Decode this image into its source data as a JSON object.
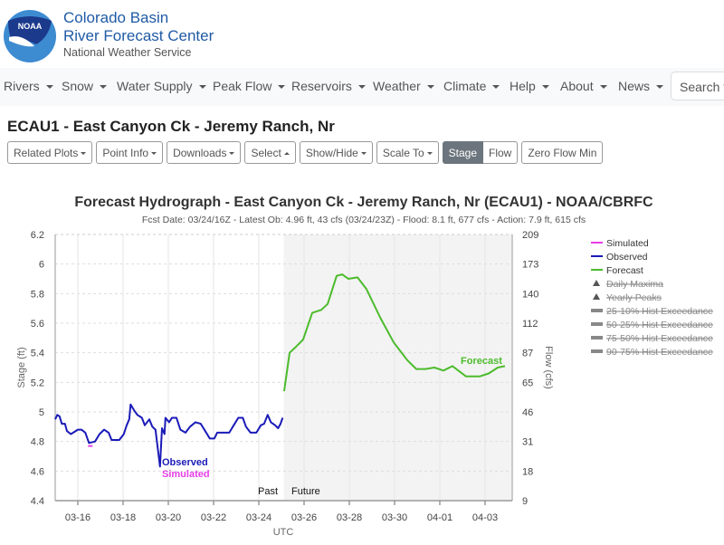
{
  "header": {
    "title_line1": "Colorado Basin",
    "title_line2": "River Forecast Center",
    "subtitle": "National Weather Service",
    "logo_text": "NOAA"
  },
  "nav": {
    "items": [
      "Rivers",
      "Snow",
      "Water Supply",
      "Peak Flow",
      "Reservoirs",
      "Weather",
      "Climate",
      "Help",
      "About",
      "News"
    ],
    "search_placeholder": "Search this site"
  },
  "page_title": "ECAU1 - East Canyon Ck - Jeremy Ranch, Nr",
  "toolbar": {
    "related": "Related Plots",
    "point": "Point Info",
    "downloads": "Downloads",
    "select": "Select",
    "showhide": "Show/Hide",
    "scale": "Scale To",
    "stage": "Stage",
    "flow": "Flow",
    "zero": "Zero Flow Min"
  },
  "chart_data": {
    "type": "line",
    "title": "Forecast Hydrograph - East Canyon Ck - Jeremy Ranch, Nr (ECAU1) - NOAA/CBRFC",
    "subtitle": "Fcst Date: 03/24/16Z - Latest Ob: 4.96 ft, 43 cfs (03/24/23Z) - Flood: 8.1 ft, 677 cfs - Action: 7.9 ft, 615 cfs",
    "ylabel": "Stage (ft)",
    "y2label": "Flow (cfs)",
    "xlabel": "UTC",
    "ylim": [
      4.4,
      6.2
    ],
    "yticks": [
      "6.2",
      "6",
      "5.8",
      "5.6",
      "5.4",
      "5.2",
      "5",
      "4.8",
      "4.6",
      "4.4"
    ],
    "y2ticks": [
      "209",
      "173",
      "140",
      "112",
      "87",
      "65",
      "46",
      "31",
      "18",
      "9"
    ],
    "x_unit": "days since 03-15 00Z",
    "xlim": [
      0,
      20.2
    ],
    "xticks": [
      {
        "day": 1,
        "label": "03-16"
      },
      {
        "day": 3,
        "label": "03-18"
      },
      {
        "day": 5,
        "label": "03-20"
      },
      {
        "day": 7,
        "label": "03-22"
      },
      {
        "day": 9,
        "label": "03-24"
      },
      {
        "day": 11,
        "label": "03-26"
      },
      {
        "day": 13,
        "label": "03-28"
      },
      {
        "day": 15,
        "label": "03-30"
      },
      {
        "day": 17,
        "label": "04-01"
      },
      {
        "day": 19,
        "label": "04-03"
      }
    ],
    "past_future_split": 10.1,
    "past_label": "Past",
    "future_label": "Future",
    "series": [
      {
        "name": "Observed",
        "color": "#1a1ab8",
        "label": "Observed",
        "points": [
          [
            0,
            4.95
          ],
          [
            0.09,
            4.98
          ],
          [
            0.19,
            4.97
          ],
          [
            0.29,
            4.92
          ],
          [
            0.43,
            4.92
          ],
          [
            0.52,
            4.87
          ],
          [
            0.69,
            4.85
          ],
          [
            1.0,
            4.88
          ],
          [
            1.16,
            4.88
          ],
          [
            1.33,
            4.86
          ],
          [
            1.49,
            4.79
          ],
          [
            1.76,
            4.8
          ],
          [
            1.96,
            4.85
          ],
          [
            2.16,
            4.88
          ],
          [
            2.36,
            4.86
          ],
          [
            2.49,
            4.81
          ],
          [
            2.83,
            4.81
          ],
          [
            3.03,
            4.85
          ],
          [
            3.16,
            4.91
          ],
          [
            3.27,
            4.95
          ],
          [
            3.33,
            5.05
          ],
          [
            3.49,
            5.01
          ],
          [
            3.63,
            4.98
          ],
          [
            3.83,
            4.96
          ],
          [
            3.96,
            4.91
          ],
          [
            4.16,
            4.95
          ],
          [
            4.29,
            4.9
          ],
          [
            4.43,
            4.88
          ],
          [
            4.52,
            4.77
          ],
          [
            4.63,
            4.63
          ],
          [
            4.72,
            4.89
          ],
          [
            4.83,
            4.85
          ],
          [
            4.87,
            4.96
          ],
          [
            5.03,
            4.93
          ],
          [
            5.16,
            4.96
          ],
          [
            5.36,
            4.96
          ],
          [
            5.53,
            4.88
          ],
          [
            5.76,
            4.86
          ],
          [
            5.96,
            4.9
          ],
          [
            6.2,
            4.93
          ],
          [
            6.43,
            4.92
          ],
          [
            6.63,
            4.87
          ],
          [
            6.83,
            4.82
          ],
          [
            7.03,
            4.82
          ],
          [
            7.16,
            4.86
          ],
          [
            7.36,
            4.86
          ],
          [
            7.69,
            4.86
          ],
          [
            7.89,
            4.91
          ],
          [
            8.09,
            4.96
          ],
          [
            8.29,
            4.96
          ],
          [
            8.43,
            4.9
          ],
          [
            8.63,
            4.86
          ],
          [
            8.89,
            4.86
          ],
          [
            9.09,
            4.91
          ],
          [
            9.23,
            4.92
          ],
          [
            9.39,
            4.98
          ],
          [
            9.53,
            4.93
          ],
          [
            9.72,
            4.91
          ],
          [
            9.85,
            4.89
          ],
          [
            9.96,
            4.92
          ],
          [
            10.05,
            4.96
          ]
        ]
      },
      {
        "name": "Simulated",
        "color": "#e83ee8",
        "label": "Simulated",
        "points": [
          [
            1.45,
            4.77
          ],
          [
            1.65,
            4.77
          ]
        ]
      },
      {
        "name": "Forecast",
        "color": "#4cbb2c",
        "label": "Forecast",
        "points": [
          [
            10.12,
            5.14
          ],
          [
            10.36,
            5.4
          ],
          [
            10.64,
            5.44
          ],
          [
            10.96,
            5.49
          ],
          [
            11.36,
            5.67
          ],
          [
            11.76,
            5.69
          ],
          [
            12.04,
            5.73
          ],
          [
            12.44,
            5.92
          ],
          [
            12.68,
            5.93
          ],
          [
            12.96,
            5.9
          ],
          [
            13.36,
            5.91
          ],
          [
            13.76,
            5.83
          ],
          [
            14.36,
            5.64
          ],
          [
            14.96,
            5.47
          ],
          [
            15.56,
            5.35
          ],
          [
            15.96,
            5.29
          ],
          [
            16.36,
            5.29
          ],
          [
            16.76,
            5.3
          ],
          [
            17.16,
            5.28
          ],
          [
            17.56,
            5.31
          ],
          [
            18.16,
            5.24
          ],
          [
            18.76,
            5.24
          ],
          [
            19.16,
            5.26
          ],
          [
            19.56,
            5.3
          ],
          [
            19.88,
            5.31
          ]
        ]
      }
    ],
    "legend": [
      {
        "label": "Simulated",
        "symbol": "line",
        "color": "#e83ee8",
        "hidden": false
      },
      {
        "label": "Observed",
        "symbol": "line",
        "color": "#1a1ab8",
        "hidden": false
      },
      {
        "label": "Forecast",
        "symbol": "line",
        "color": "#4cbb2c",
        "hidden": false
      },
      {
        "label": "Daily Maxima",
        "symbol": "triangle",
        "color": "#555555",
        "hidden": true
      },
      {
        "label": "Yearly Peaks",
        "symbol": "triangle",
        "color": "#555555",
        "hidden": true
      },
      {
        "label": "25-10% Hist Exceedance",
        "symbol": "bar",
        "color": "#888888",
        "hidden": true
      },
      {
        "label": "50-25% Hist Exceedance",
        "symbol": "bar",
        "color": "#888888",
        "hidden": true
      },
      {
        "label": "75-50% Hist Exceedance",
        "symbol": "bar",
        "color": "#888888",
        "hidden": true
      },
      {
        "label": "90-75% Hist Exceedance",
        "symbol": "bar",
        "color": "#888888",
        "hidden": true
      }
    ],
    "legend_position": "right"
  }
}
